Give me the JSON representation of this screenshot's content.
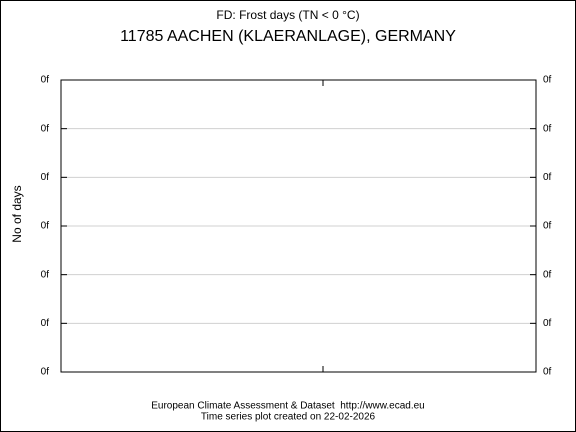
{
  "chart_data": {
    "type": "line",
    "title": "FD: Frost days (TN < 0 °C)",
    "subtitle": "11785 AACHEN (KLAERANLAGE), GERMANY",
    "ylabel": "No of days",
    "ylim": [
      0,
      6
    ],
    "yticks": [
      {
        "value": 0,
        "label": "0f"
      },
      {
        "value": 1,
        "label": "0f"
      },
      {
        "value": 2,
        "label": "0f"
      },
      {
        "value": 3,
        "label": "0f"
      },
      {
        "value": 4,
        "label": "0f"
      },
      {
        "value": 5,
        "label": "0f"
      },
      {
        "value": 6,
        "label": "0f"
      }
    ],
    "grid": true,
    "footer": [
      "European Climate Assessment & Dataset  http://www.ecad.eu",
      "Time series plot created on 22-02-2026"
    ]
  }
}
